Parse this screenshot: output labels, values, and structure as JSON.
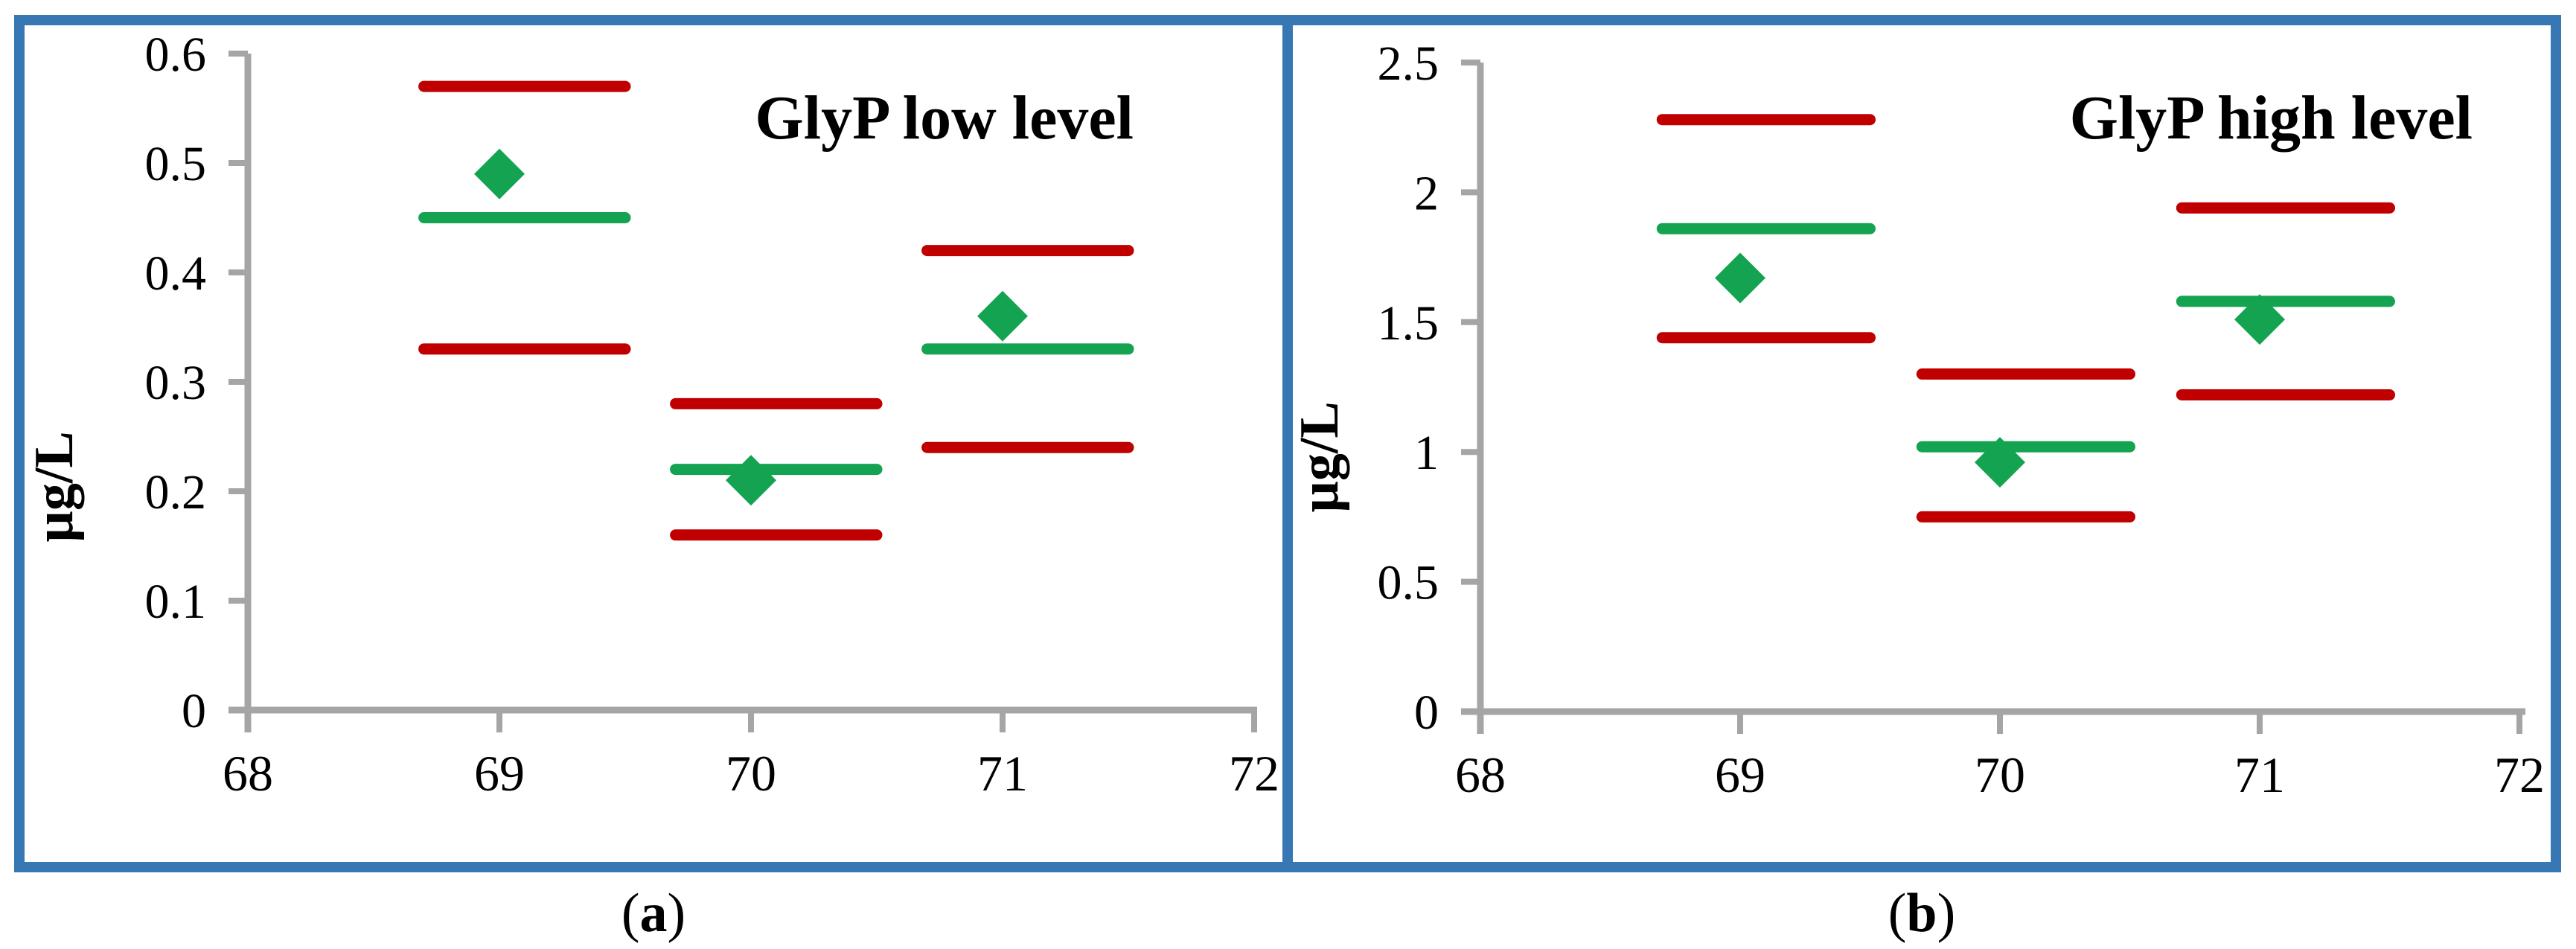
{
  "figure": {
    "colors": {
      "panel_border": "#3778B4",
      "axis": "#A5A5A5",
      "limit_line": "#C00000",
      "center_line": "#14A351",
      "marker": "#14A351",
      "text": "#000000"
    },
    "panels": [
      {
        "caption_open": "(",
        "caption_letter": "a",
        "caption_close": ")"
      },
      {
        "caption_open": "(",
        "caption_letter": "b",
        "caption_close": ")"
      }
    ]
  },
  "chart_data": [
    {
      "type": "scatter",
      "title": "GlyP low level",
      "ylabel": "µg/L",
      "xlabel": "",
      "xlim": [
        68,
        72
      ],
      "ylim": [
        0,
        0.6
      ],
      "x_ticks": [
        68,
        69,
        70,
        71,
        72
      ],
      "x_tick_labels": [
        "68",
        "69",
        "70",
        "71",
        "72"
      ],
      "y_ticks": [
        0,
        0.1,
        0.2,
        0.3,
        0.4,
        0.5,
        0.6
      ],
      "y_tick_labels": [
        "0",
        "0.1",
        "0.2",
        "0.3",
        "0.4",
        "0.5",
        "0.6"
      ],
      "grid": false,
      "legend": "none",
      "line_span": [
        -0.3,
        0.5
      ],
      "groups": [
        {
          "x": 69,
          "point": 0.49,
          "center_line": 0.45,
          "upper_limit": 0.57,
          "lower_limit": 0.33
        },
        {
          "x": 70,
          "point": 0.21,
          "center_line": 0.22,
          "upper_limit": 0.28,
          "lower_limit": 0.16
        },
        {
          "x": 71,
          "point": 0.36,
          "center_line": 0.33,
          "upper_limit": 0.42,
          "lower_limit": 0.24
        }
      ]
    },
    {
      "type": "scatter",
      "title": "GlyP high level",
      "ylabel": "µg/L",
      "xlabel": "",
      "xlim": [
        68,
        72
      ],
      "ylim": [
        0,
        2.5
      ],
      "x_ticks": [
        68,
        69,
        70,
        71,
        72
      ],
      "x_tick_labels": [
        "68",
        "69",
        "70",
        "71",
        "72"
      ],
      "y_ticks": [
        0,
        0.5,
        1,
        1.5,
        2,
        2.5
      ],
      "y_tick_labels": [
        "0",
        "0.5",
        "1",
        "1.5",
        "2",
        "2.5"
      ],
      "grid": false,
      "legend": "none",
      "line_span": [
        -0.3,
        0.5
      ],
      "groups": [
        {
          "x": 69,
          "point": 1.67,
          "center_line": 1.86,
          "upper_limit": 2.28,
          "lower_limit": 1.44
        },
        {
          "x": 70,
          "point": 0.96,
          "center_line": 1.02,
          "upper_limit": 1.3,
          "lower_limit": 0.75
        },
        {
          "x": 71,
          "point": 1.51,
          "center_line": 1.58,
          "upper_limit": 1.94,
          "lower_limit": 1.22
        }
      ]
    }
  ]
}
